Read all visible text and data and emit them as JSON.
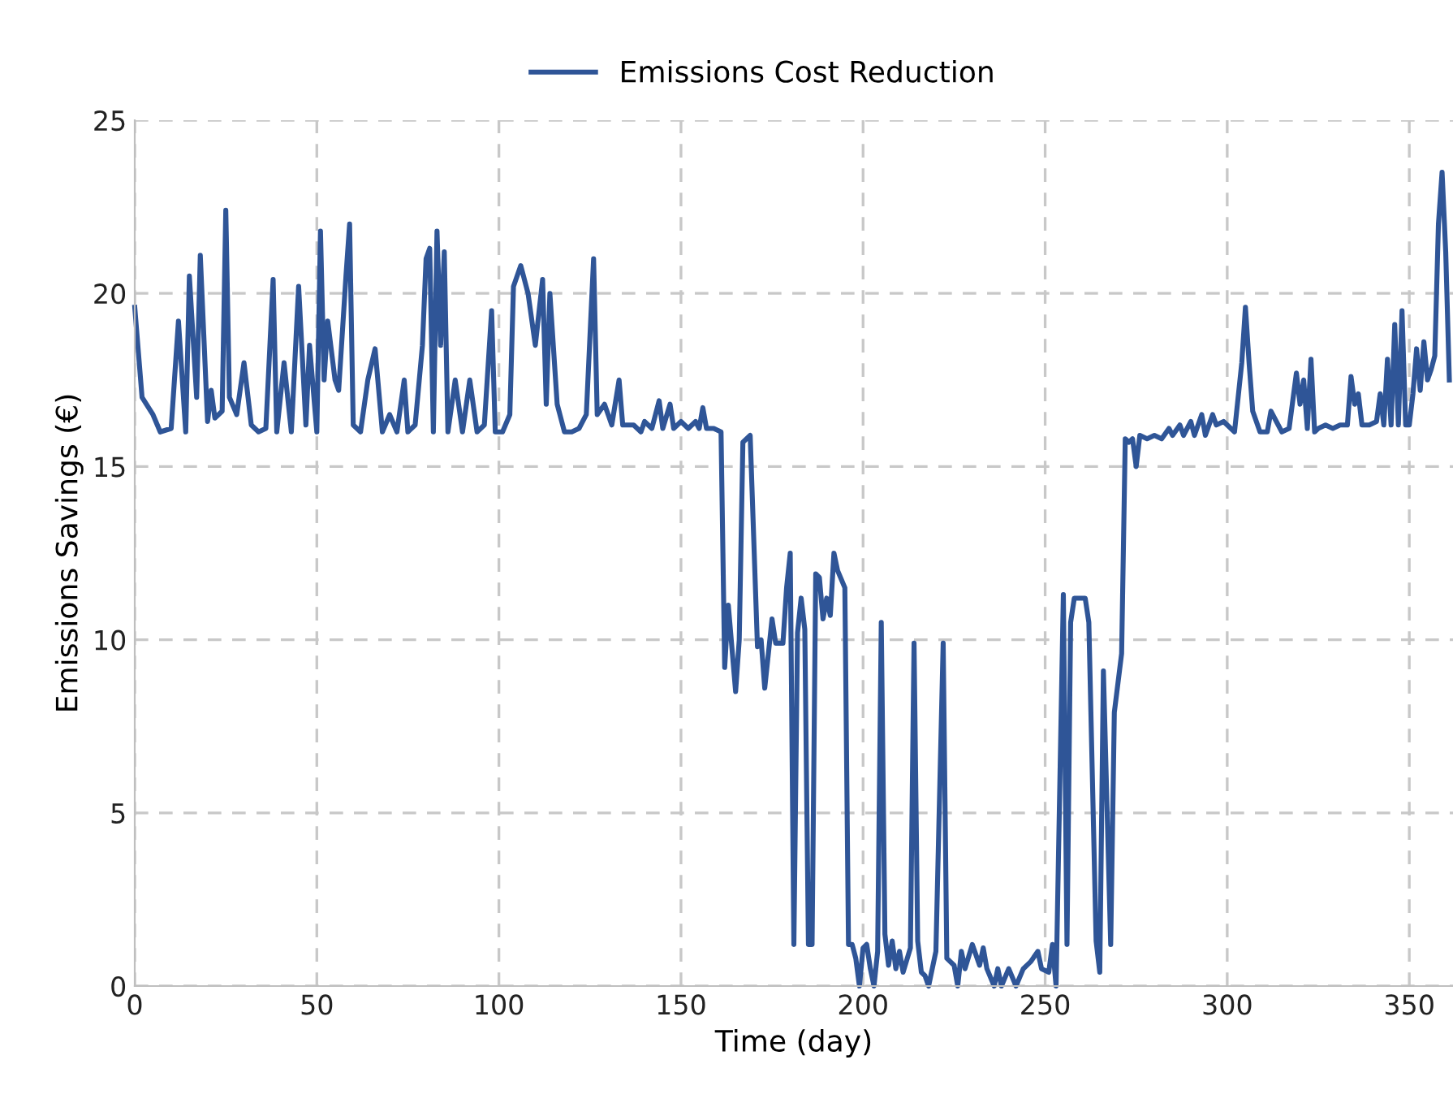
{
  "chart_data": {
    "type": "line",
    "xlabel": "Time (day)",
    "ylabel": "Emissions Savings (€)",
    "xlim": [
      0,
      362
    ],
    "ylim": [
      0,
      25
    ],
    "xticks": [
      0,
      50,
      100,
      150,
      200,
      250,
      300,
      350
    ],
    "yticks": [
      0,
      5,
      10,
      15,
      20,
      25
    ],
    "grid": true,
    "legend": "top",
    "marker": "none",
    "line_style": "solid",
    "series": [
      {
        "name": "Emissions Cost Reduction",
        "color": "#2f5597",
        "x": [
          0,
          2,
          5,
          7,
          10,
          12,
          14,
          15,
          17,
          18,
          20,
          21,
          22,
          24,
          25,
          26,
          28,
          30,
          32,
          34,
          36,
          38,
          39,
          41,
          43,
          45,
          47,
          48,
          50,
          51,
          52,
          53,
          55,
          56,
          58,
          59,
          60,
          62,
          64,
          66,
          68,
          70,
          72,
          74,
          75,
          77,
          79,
          80,
          81,
          82,
          83,
          84,
          85,
          86,
          88,
          90,
          92,
          94,
          96,
          98,
          99,
          101,
          103,
          104,
          106,
          108,
          110,
          112,
          113,
          114,
          116,
          118,
          120,
          122,
          124,
          126,
          127,
          129,
          131,
          133,
          134,
          137,
          139,
          140,
          142,
          144,
          145,
          147,
          148,
          150,
          152,
          154,
          155,
          156,
          157,
          159,
          161,
          162,
          163,
          165,
          166,
          167,
          168,
          169,
          171,
          172,
          173,
          175,
          176,
          178,
          179,
          180,
          181,
          182,
          183,
          184,
          185,
          186,
          187,
          188,
          189,
          190,
          191,
          192,
          193,
          195,
          196,
          197,
          198,
          199,
          200,
          201,
          202,
          203,
          204,
          205,
          206,
          207,
          208,
          209,
          210,
          211,
          213,
          214,
          215,
          216,
          217,
          218,
          219,
          220,
          222,
          223,
          225,
          226,
          227,
          228,
          230,
          232,
          233,
          234,
          236,
          237,
          238,
          240,
          242,
          244,
          246,
          248,
          249,
          251,
          252,
          253,
          255,
          256,
          257,
          258,
          260,
          261,
          262,
          264,
          265,
          266,
          268,
          269,
          271,
          272,
          273,
          274,
          275,
          276,
          278,
          280,
          282,
          284,
          285,
          287,
          288,
          290,
          291,
          293,
          294,
          296,
          297,
          299,
          301,
          302,
          304,
          305,
          306,
          307,
          309,
          311,
          312,
          314,
          315,
          317,
          319,
          320,
          321,
          322,
          323,
          324,
          325,
          327,
          329,
          331,
          333,
          334,
          335,
          336,
          337,
          339,
          341,
          342,
          343,
          344,
          345,
          346,
          347,
          348,
          349,
          350,
          351,
          352,
          353,
          354,
          355,
          356,
          357,
          358,
          359,
          360,
          361
        ],
        "values": [
          19.6,
          17,
          16.5,
          16,
          16.1,
          19.2,
          16,
          20.5,
          17,
          21.1,
          16.3,
          17.2,
          16.4,
          16.6,
          22.4,
          17,
          16.5,
          18,
          16.2,
          16,
          16.1,
          20.4,
          16,
          18,
          16,
          20.2,
          16.2,
          18.5,
          16,
          21.8,
          17.5,
          19.2,
          17.5,
          17.2,
          20.5,
          22,
          16.2,
          16,
          17.5,
          18.4,
          16,
          16.5,
          16,
          17.5,
          16,
          16.2,
          18.5,
          21,
          21.3,
          16,
          21.8,
          18.5,
          21.2,
          16,
          17.5,
          16,
          17.5,
          16,
          16.2,
          19.5,
          16,
          16,
          16.5,
          20.2,
          20.8,
          20,
          18.5,
          20.4,
          16.8,
          20,
          16.8,
          16,
          16,
          16.1,
          16.5,
          21,
          16.5,
          16.8,
          16.2,
          17.5,
          16.2,
          16.2,
          16,
          16.3,
          16.1,
          16.9,
          16.1,
          16.8,
          16.1,
          16.3,
          16.1,
          16.3,
          16.1,
          16.7,
          16.1,
          16.1,
          16,
          9.2,
          11,
          8.5,
          10,
          15.7,
          15.8,
          15.9,
          9.8,
          10,
          8.6,
          10.6,
          9.9,
          9.9,
          11.5,
          12.5,
          1.2,
          10.2,
          11.2,
          10.3,
          1.2,
          1.2,
          11.9,
          11.8,
          10.6,
          11.2,
          10.7,
          12.5,
          12,
          11.5,
          1.2,
          1.2,
          0.8,
          0,
          1.1,
          1.2,
          0.5,
          0,
          1,
          10.5,
          1.5,
          0.6,
          1.3,
          0.5,
          1,
          0.4,
          1.1,
          9.9,
          1.3,
          0.4,
          0.3,
          0,
          0.5,
          1,
          9.9,
          0.8,
          0.6,
          0,
          1,
          0.5,
          1.2,
          0.6,
          1.1,
          0.5,
          0,
          0.5,
          0,
          0.5,
          0,
          0.5,
          0.7,
          1,
          0.5,
          0.4,
          1.2,
          0,
          11.3,
          1.2,
          10.5,
          11.2,
          11.2,
          11.2,
          10.5,
          1.3,
          0.4,
          9.1,
          1.2,
          7.9,
          9.6,
          15.8,
          15.7,
          15.8,
          15,
          15.9,
          15.8,
          15.9,
          15.8,
          16.1,
          15.9,
          16.2,
          15.9,
          16.3,
          15.9,
          16.5,
          15.9,
          16.5,
          16.2,
          16.3,
          16.1,
          16,
          18,
          19.6,
          18,
          16.6,
          16,
          16,
          16.6,
          16.2,
          16,
          16.1,
          17.7,
          16.8,
          17.5,
          16.1,
          18.1,
          16,
          16.1,
          16.2,
          16.1,
          16.2,
          16.2,
          17.6,
          16.8,
          17.1,
          16.2,
          16.2,
          16.3,
          17.1,
          16.2,
          18.1,
          16.2,
          19.1,
          16.2,
          19.5,
          16.2,
          16.2,
          17.1,
          18.4,
          17.2,
          18.6,
          17.5,
          17.8,
          18.2,
          22,
          23.5,
          21.2,
          17.5
        ]
      }
    ]
  }
}
